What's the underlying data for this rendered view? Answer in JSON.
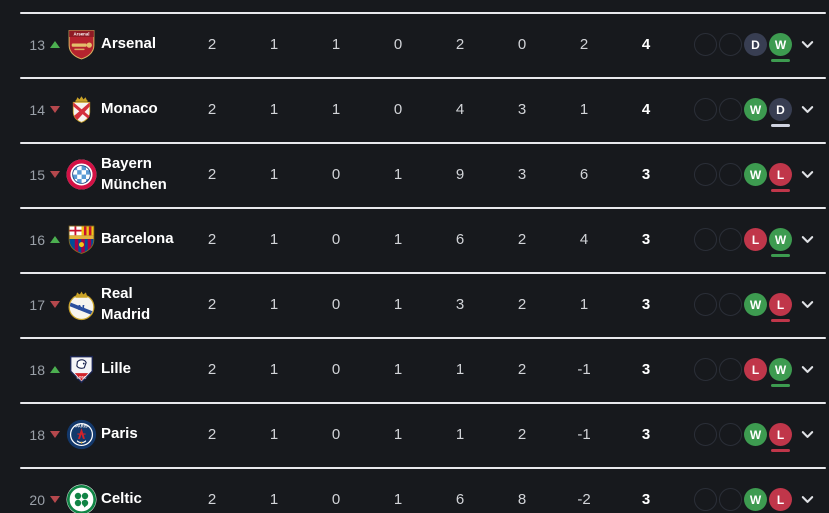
{
  "colors": {
    "background": "#17191d",
    "separator": "#e8e8ec",
    "win": "#3d9b50",
    "loss": "#c0364a",
    "draw": "#383e52",
    "draw_underline": "#cfd3e0",
    "rank_up": "#4caf50",
    "rank_down": "#b5484d",
    "text_primary": "#ffffff",
    "text_secondary": "#d2d4d8",
    "text_muted": "#9aa0a8",
    "empty_ring": "#2b2f38",
    "chevron": "#dfe1e5"
  },
  "table": {
    "rows": [
      {
        "rank": "13",
        "movement": "up",
        "team": "Arsenal",
        "crest": "arsenal-crest",
        "stats": [
          "2",
          "1",
          "1",
          "0",
          "2",
          "0",
          "2"
        ],
        "points": "4",
        "form": [
          "",
          "",
          "D",
          "W"
        ]
      },
      {
        "rank": "14",
        "movement": "down",
        "team": "Monaco",
        "crest": "monaco-crest",
        "stats": [
          "2",
          "1",
          "1",
          "0",
          "4",
          "3",
          "1"
        ],
        "points": "4",
        "form": [
          "",
          "",
          "W",
          "D"
        ]
      },
      {
        "rank": "15",
        "movement": "down",
        "team": "Bayern München",
        "crest": "bayern-crest",
        "stats": [
          "2",
          "1",
          "0",
          "1",
          "9",
          "3",
          "6"
        ],
        "points": "3",
        "form": [
          "",
          "",
          "W",
          "L"
        ]
      },
      {
        "rank": "16",
        "movement": "up",
        "team": "Barcelona",
        "crest": "barcelona-crest",
        "stats": [
          "2",
          "1",
          "0",
          "1",
          "6",
          "2",
          "4"
        ],
        "points": "3",
        "form": [
          "",
          "",
          "L",
          "W"
        ]
      },
      {
        "rank": "17",
        "movement": "down",
        "team": "Real Madrid",
        "crest": "real-madrid-crest",
        "stats": [
          "2",
          "1",
          "0",
          "1",
          "3",
          "2",
          "1"
        ],
        "points": "3",
        "form": [
          "",
          "",
          "W",
          "L"
        ]
      },
      {
        "rank": "18",
        "movement": "up",
        "team": "Lille",
        "crest": "lille-crest",
        "stats": [
          "2",
          "1",
          "0",
          "1",
          "1",
          "2",
          "-1"
        ],
        "points": "3",
        "form": [
          "",
          "",
          "L",
          "W"
        ]
      },
      {
        "rank": "18",
        "movement": "down",
        "team": "Paris",
        "crest": "paris-crest",
        "stats": [
          "2",
          "1",
          "0",
          "1",
          "1",
          "2",
          "-1"
        ],
        "points": "3",
        "form": [
          "",
          "",
          "W",
          "L"
        ]
      },
      {
        "rank": "20",
        "movement": "down",
        "team": "Celtic",
        "crest": "celtic-crest",
        "stats": [
          "2",
          "1",
          "0",
          "1",
          "6",
          "8",
          "-2"
        ],
        "points": "3",
        "form": [
          "",
          "",
          "W",
          "L"
        ]
      }
    ]
  }
}
